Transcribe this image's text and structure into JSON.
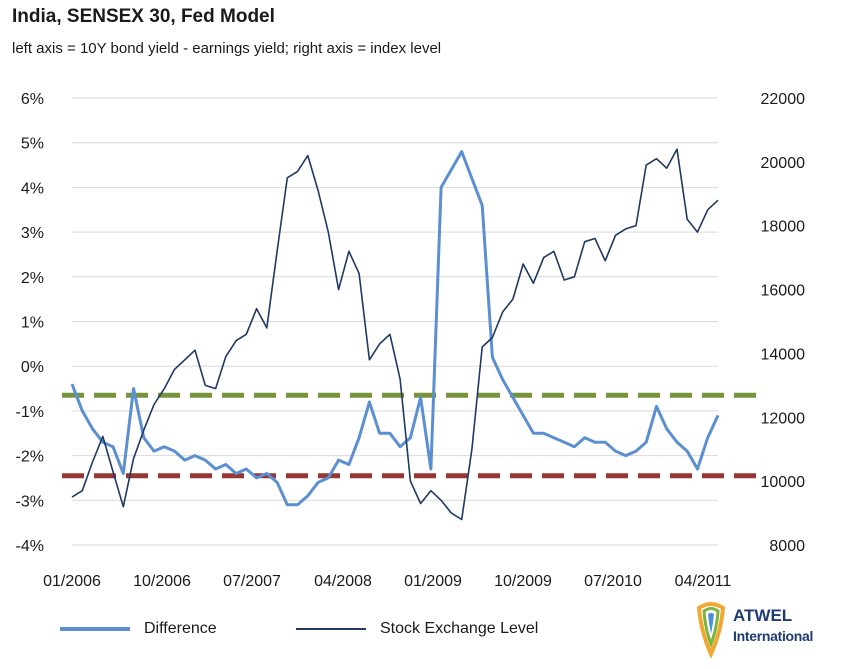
{
  "title": "India, SENSEX 30, Fed Model",
  "subtitle": "left axis = 10Y bond yield - earnings yield; right axis = index level",
  "legend": {
    "diff_label": "Difference",
    "level_label": "Stock Exchange Level"
  },
  "brand": {
    "name": "ATWEL",
    "sub": "International"
  },
  "colors": {
    "difference": "#5b8fd2",
    "level": "#1f3864",
    "green_line": "#77933c",
    "red_line": "#953735",
    "grid": "#d9d9d9"
  },
  "chart_data": {
    "type": "line",
    "x_ticks": [
      "01/2006",
      "10/2006",
      "07/2007",
      "04/2008",
      "01/2009",
      "10/2009",
      "07/2010",
      "04/2011"
    ],
    "left_axis": {
      "ticks": [
        "6%",
        "5%",
        "4%",
        "3%",
        "2%",
        "1%",
        "0%",
        "-1%",
        "-2%",
        "-3%",
        "-4%"
      ],
      "ylim": [
        -4,
        6
      ],
      "unit": "%"
    },
    "right_axis": {
      "ticks": [
        "22000",
        "20000",
        "18000",
        "16000",
        "14000",
        "12000",
        "10000",
        "8000"
      ],
      "ylim": [
        8000,
        22000
      ]
    },
    "reference_lines": [
      {
        "name": "green-threshold",
        "axis": "left",
        "value": -0.65,
        "style": "dashed"
      },
      {
        "name": "red-threshold",
        "axis": "left",
        "value": -2.45,
        "style": "dashed"
      }
    ],
    "series": [
      {
        "name": "Difference",
        "axis": "left",
        "x": [
          "2006-01",
          "2006-02",
          "2006-03",
          "2006-04",
          "2006-05",
          "2006-06",
          "2006-07",
          "2006-08",
          "2006-09",
          "2006-10",
          "2006-11",
          "2006-12",
          "2007-01",
          "2007-02",
          "2007-03",
          "2007-04",
          "2007-05",
          "2007-06",
          "2007-07",
          "2007-08",
          "2007-09",
          "2007-10",
          "2007-11",
          "2007-12",
          "2008-01",
          "2008-02",
          "2008-03",
          "2008-04",
          "2008-05",
          "2008-06",
          "2008-07",
          "2008-08",
          "2008-09",
          "2008-10",
          "2008-11",
          "2008-12",
          "2009-01",
          "2009-02",
          "2009-03",
          "2009-04",
          "2009-05",
          "2009-06",
          "2009-07",
          "2009-08",
          "2009-09",
          "2009-10",
          "2009-11",
          "2009-12",
          "2010-01",
          "2010-02",
          "2010-03",
          "2010-04",
          "2010-05",
          "2010-06",
          "2010-07",
          "2010-08",
          "2010-09",
          "2010-10",
          "2010-11",
          "2010-12",
          "2011-01",
          "2011-02",
          "2011-03",
          "2011-04"
        ],
        "values": [
          -0.4,
          -1.0,
          -1.4,
          -1.7,
          -1.8,
          -2.4,
          -0.5,
          -1.6,
          -1.9,
          -1.8,
          -1.9,
          -2.1,
          -2.0,
          -2.1,
          -2.3,
          -2.2,
          -2.4,
          -2.3,
          -2.5,
          -2.4,
          -2.6,
          -3.1,
          -3.1,
          -2.9,
          -2.6,
          -2.5,
          -2.1,
          -2.2,
          -1.6,
          -0.8,
          -1.5,
          -1.5,
          -1.8,
          -1.6,
          -0.7,
          -2.3,
          4.0,
          4.4,
          4.8,
          4.2,
          3.6,
          0.2,
          -0.3,
          -0.7,
          -1.1,
          -1.5,
          -1.5,
          -1.6,
          -1.7,
          -1.8,
          -1.6,
          -1.7,
          -1.7,
          -1.9,
          -2.0,
          -1.9,
          -1.7,
          -0.9,
          -1.4,
          -1.7,
          -1.9,
          -2.3,
          -1.6,
          -1.1
        ]
      },
      {
        "name": "Stock Exchange Level",
        "axis": "right",
        "x": [
          "2006-01",
          "2006-02",
          "2006-03",
          "2006-04",
          "2006-05",
          "2006-06",
          "2006-07",
          "2006-08",
          "2006-09",
          "2006-10",
          "2006-11",
          "2006-12",
          "2007-01",
          "2007-02",
          "2007-03",
          "2007-04",
          "2007-05",
          "2007-06",
          "2007-07",
          "2007-08",
          "2007-09",
          "2007-10",
          "2007-11",
          "2007-12",
          "2008-01",
          "2008-02",
          "2008-03",
          "2008-04",
          "2008-05",
          "2008-06",
          "2008-07",
          "2008-08",
          "2008-09",
          "2008-10",
          "2008-11",
          "2008-12",
          "2009-01",
          "2009-02",
          "2009-03",
          "2009-04",
          "2009-05",
          "2009-06",
          "2009-07",
          "2009-08",
          "2009-09",
          "2009-10",
          "2009-11",
          "2009-12",
          "2010-01",
          "2010-02",
          "2010-03",
          "2010-04",
          "2010-05",
          "2010-06",
          "2010-07",
          "2010-08",
          "2010-09",
          "2010-10",
          "2010-11",
          "2010-12",
          "2011-01",
          "2011-02",
          "2011-03",
          "2011-04"
        ],
        "values": [
          9500,
          9700,
          10600,
          11400,
          10300,
          9200,
          10700,
          11600,
          12400,
          12900,
          13500,
          13800,
          14100,
          13000,
          12900,
          13900,
          14400,
          14600,
          15400,
          14800,
          17200,
          19500,
          19700,
          20200,
          19100,
          17800,
          16000,
          17200,
          16500,
          13800,
          14300,
          14600,
          13200,
          10000,
          9300,
          9700,
          9400,
          9000,
          8800,
          11000,
          14200,
          14500,
          15300,
          15700,
          16800,
          16200,
          17000,
          17200,
          16300,
          16400,
          17500,
          17600,
          16900,
          17700,
          17900,
          18000,
          19900,
          20100,
          19800,
          20400,
          18200,
          17800,
          18500,
          18800
        ]
      }
    ]
  }
}
